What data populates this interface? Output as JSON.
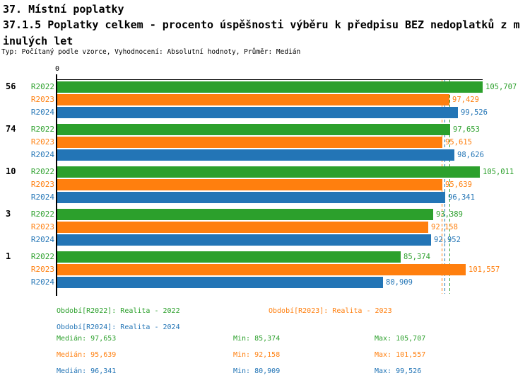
{
  "header": {
    "title_line1": "37. Místní poplatky",
    "title_line2": "37.1.5 Poplatky celkem - procento úspěšnosti výběru k předpisu BEZ nedoplatků z m",
    "title_line3": "inulých let",
    "meta": "Typ: Počítaný podle vzorce, Vyhodnocení: Absolutní hodnoty, Průměr: Medián"
  },
  "axis": {
    "zero_label": "0"
  },
  "legend": {
    "r2022": "Období[R2022]: Realita - 2022",
    "r2023": "Období[R2023]: Realita - 2023",
    "r2024": "Období[R2024]: Realita - 2024"
  },
  "stats": {
    "rows": [
      {
        "median": "Medián: 97,653",
        "min": "Min: 85,374",
        "max": "Max: 105,707"
      },
      {
        "median": "Medián: 95,639",
        "min": "Min: 92,158",
        "max": "Max: 101,557"
      },
      {
        "median": "Medián: 96,341",
        "min": "Min: 80,909",
        "max": "Max: 99,526"
      }
    ]
  },
  "chart_data": {
    "type": "bar",
    "orientation": "horizontal",
    "title": "37.1.5 Poplatky celkem - procento úspěšnosti výběru k předpisu BEZ nedoplatků z minulých let",
    "subtitle": "Typ: Počítaný podle vzorce, Vyhodnocení: Absolutní hodnoty, Průměr: Medián",
    "categories": [
      "56",
      "74",
      "10",
      "3",
      "1"
    ],
    "xlim": [
      0,
      105.707
    ],
    "x_zero_label": "0",
    "grid": false,
    "legend_position": "bottom",
    "median_lines": true,
    "series": [
      {
        "name": "R2022",
        "color": "#2CA02C",
        "legend": "Období[R2022]: Realita - 2022",
        "values": [
          105.707,
          97.653,
          105.011,
          93.389,
          85.374
        ],
        "labels": [
          "105,707",
          "97,653",
          "105,011",
          "93,389",
          "85,374"
        ],
        "median": 97.653,
        "min": 85.374,
        "max": 105.707
      },
      {
        "name": "R2023",
        "color": "#FF7F0E",
        "legend": "Období[R2023]: Realita - 2023",
        "values": [
          97.429,
          95.615,
          95.639,
          92.158,
          101.557
        ],
        "labels": [
          "97,429",
          "95,615",
          "95,639",
          "92,158",
          "101,557"
        ],
        "median": 95.639,
        "min": 92.158,
        "max": 101.557
      },
      {
        "name": "R2024",
        "color": "#2375B6",
        "legend": "Období[R2024]: Realita - 2024",
        "values": [
          99.526,
          98.626,
          96.341,
          92.952,
          80.909
        ],
        "labels": [
          "99,526",
          "98,626",
          "96,341",
          "92,952",
          "80,909"
        ],
        "median": 96.341,
        "min": 80.909,
        "max": 99.526
      }
    ]
  }
}
